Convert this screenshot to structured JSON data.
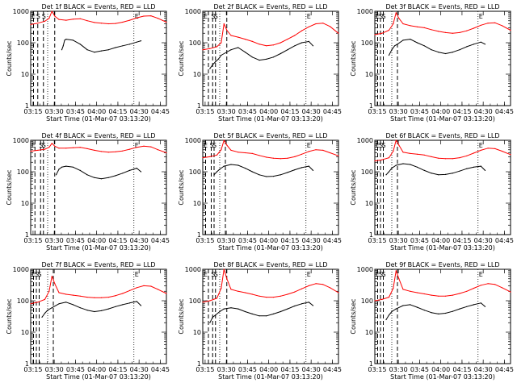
{
  "figure": {
    "xlabel": "Start Time (01-Mar-07 03:13:20)",
    "ylabel": "Counts/sec",
    "x_tick_labels": [
      "03:15",
      "03:30",
      "03:45",
      "04:00",
      "04:15",
      "04:30",
      "04:45"
    ],
    "y_tick_labels": [
      "1",
      "10",
      "100",
      "1000"
    ],
    "markers": {
      "E": "E",
      "S": "S"
    },
    "colors": {
      "events": "#000000",
      "lld": "#ff0000",
      "axes": "#000000"
    }
  },
  "chart_data": [
    {
      "type": "line",
      "title": "Det 1f BLACK = Events, RED = LLD",
      "x_range_min": [
        0,
        96
      ],
      "y_log_range": [
        1,
        1000
      ],
      "series": [
        {
          "color": "#000000",
          "x_min": [
            22,
            23,
            24,
            25,
            30,
            35,
            40,
            45,
            50,
            55,
            60,
            65,
            70,
            75,
            78
          ],
          "y": [
            60,
            80,
            120,
            130,
            120,
            90,
            60,
            50,
            55,
            60,
            70,
            80,
            90,
            105,
            115
          ]
        },
        {
          "color": "#ff0000",
          "x_min": [
            0,
            5,
            10,
            13,
            15,
            17,
            20,
            25,
            30,
            35,
            40,
            45,
            50,
            55,
            60,
            65,
            70,
            75,
            80,
            85,
            90,
            96
          ],
          "y": [
            380,
            420,
            480,
            600,
            1000,
            700,
            550,
            520,
            560,
            580,
            500,
            440,
            420,
            400,
            410,
            450,
            520,
            620,
            700,
            720,
            600,
            450
          ]
        }
      ],
      "events": {
        "dashed_x_min": [
          2,
          5,
          9,
          17
        ],
        "dotted_x_min": [
          12,
          73
        ]
      }
    },
    {
      "type": "line",
      "title": "Det 2f BLACK = Events, RED = LLD",
      "x_range_min": [
        0,
        96
      ],
      "y_log_range": [
        1,
        1000
      ],
      "series": [
        {
          "color": "#000000",
          "x_min": [
            5,
            7,
            9,
            11,
            13,
            20,
            25,
            30,
            35,
            40,
            45,
            50,
            55,
            60,
            65,
            70,
            75,
            78
          ],
          "y": [
            15,
            20,
            25,
            30,
            40,
            60,
            70,
            50,
            35,
            28,
            30,
            35,
            45,
            60,
            80,
            100,
            110,
            80
          ]
        },
        {
          "color": "#ff0000",
          "x_min": [
            0,
            5,
            10,
            13,
            15,
            17,
            20,
            25,
            30,
            35,
            40,
            45,
            50,
            55,
            60,
            65,
            70,
            75,
            80,
            85,
            90,
            96
          ],
          "y": [
            60,
            65,
            75,
            100,
            400,
            250,
            170,
            150,
            130,
            110,
            90,
            80,
            85,
            100,
            130,
            170,
            240,
            320,
            400,
            420,
            330,
            200
          ]
        }
      ],
      "events": {
        "dashed_x_min": [
          4,
          7,
          9,
          17
        ],
        "dotted_x_min": [
          12,
          73
        ]
      }
    },
    {
      "type": "line",
      "title": "Det 3f BLACK = Events, RED = LLD",
      "x_range_min": [
        0,
        96
      ],
      "y_log_range": [
        1,
        1000
      ],
      "series": [
        {
          "color": "#000000",
          "x_min": [
            10,
            12,
            14,
            16,
            20,
            25,
            30,
            35,
            40,
            45,
            50,
            55,
            60,
            65,
            70,
            75,
            78
          ],
          "y": [
            40,
            60,
            80,
            90,
            120,
            130,
            100,
            80,
            60,
            50,
            45,
            50,
            60,
            75,
            90,
            105,
            90
          ]
        },
        {
          "color": "#ff0000",
          "x_min": [
            0,
            5,
            10,
            13,
            15,
            17,
            20,
            25,
            30,
            35,
            40,
            45,
            50,
            55,
            60,
            65,
            70,
            75,
            80,
            85,
            90,
            96
          ],
          "y": [
            180,
            200,
            250,
            400,
            900,
            600,
            400,
            350,
            320,
            300,
            260,
            230,
            210,
            200,
            210,
            240,
            290,
            360,
            420,
            430,
            350,
            250
          ]
        }
      ],
      "events": {
        "dashed_x_min": [
          2,
          4,
          6,
          16
        ],
        "dotted_x_min": [
          12,
          73
        ]
      }
    },
    {
      "type": "line",
      "title": "Det 4f BLACK = Events, RED = LLD",
      "x_range_min": [
        0,
        96
      ],
      "y_log_range": [
        1,
        1000
      ],
      "series": [
        {
          "color": "#000000",
          "x_min": [
            18,
            20,
            22,
            25,
            30,
            35,
            40,
            45,
            50,
            55,
            60,
            65,
            70,
            75,
            78
          ],
          "y": [
            80,
            120,
            140,
            150,
            140,
            110,
            80,
            65,
            60,
            65,
            75,
            90,
            110,
            130,
            100
          ]
        },
        {
          "color": "#ff0000",
          "x_min": [
            0,
            5,
            10,
            13,
            15,
            17,
            20,
            25,
            30,
            35,
            40,
            45,
            50,
            55,
            60,
            65,
            70,
            75,
            80,
            85,
            90,
            96
          ],
          "y": [
            450,
            480,
            520,
            600,
            800,
            650,
            560,
            560,
            580,
            600,
            540,
            480,
            440,
            420,
            430,
            460,
            520,
            600,
            650,
            620,
            500,
            400
          ]
        }
      ],
      "events": {
        "dashed_x_min": [
          3,
          7,
          9,
          17
        ],
        "dotted_x_min": [
          12,
          73
        ]
      }
    },
    {
      "type": "line",
      "title": "Det 5f BLACK = Events, RED = LLD",
      "x_range_min": [
        0,
        96
      ],
      "y_log_range": [
        1,
        1000
      ],
      "series": [
        {
          "color": "#000000",
          "x_min": [
            8,
            10,
            12,
            15,
            20,
            25,
            30,
            35,
            40,
            45,
            50,
            55,
            60,
            65,
            70,
            75,
            78
          ],
          "y": [
            80,
            100,
            120,
            150,
            170,
            160,
            130,
            100,
            80,
            70,
            72,
            80,
            95,
            115,
            135,
            150,
            110
          ]
        },
        {
          "color": "#ff0000",
          "x_min": [
            0,
            5,
            10,
            13,
            15,
            17,
            20,
            25,
            30,
            35,
            40,
            45,
            50,
            55,
            60,
            65,
            70,
            75,
            80,
            85,
            90,
            96
          ],
          "y": [
            280,
            300,
            340,
            500,
            1000,
            700,
            480,
            420,
            400,
            380,
            330,
            290,
            270,
            260,
            270,
            300,
            360,
            440,
            500,
            480,
            400,
            320
          ]
        }
      ],
      "events": {
        "dashed_x_min": [
          2,
          6,
          8,
          16
        ],
        "dotted_x_min": [
          12,
          73
        ]
      }
    },
    {
      "type": "line",
      "title": "Det 6f BLACK = Events, RED = LLD",
      "x_range_min": [
        0,
        96
      ],
      "y_log_range": [
        1,
        1000
      ],
      "series": [
        {
          "color": "#000000",
          "x_min": [
            8,
            10,
            12,
            15,
            20,
            25,
            30,
            35,
            40,
            45,
            50,
            55,
            60,
            65,
            70,
            75,
            78
          ],
          "y": [
            80,
            100,
            130,
            160,
            180,
            170,
            140,
            110,
            90,
            80,
            82,
            90,
            105,
            125,
            140,
            150,
            110
          ]
        },
        {
          "color": "#ff0000",
          "x_min": [
            0,
            5,
            10,
            13,
            15,
            17,
            20,
            25,
            30,
            35,
            40,
            45,
            50,
            55,
            60,
            65,
            70,
            75,
            80,
            85,
            90,
            96
          ],
          "y": [
            220,
            240,
            280,
            450,
            1000,
            700,
            420,
            380,
            360,
            340,
            300,
            270,
            260,
            260,
            280,
            320,
            390,
            480,
            560,
            540,
            450,
            350
          ]
        }
      ],
      "events": {
        "dashed_x_min": [
          2,
          4,
          6,
          16
        ],
        "dotted_x_min": [
          12,
          73
        ]
      }
    },
    {
      "type": "line",
      "title": "Det 7f BLACK = Events, RED = LLD",
      "x_range_min": [
        0,
        96
      ],
      "y_log_range": [
        1,
        1000
      ],
      "series": [
        {
          "color": "#000000",
          "x_min": [
            8,
            10,
            12,
            15,
            20,
            25,
            30,
            35,
            40,
            45,
            50,
            55,
            60,
            65,
            70,
            75,
            78
          ],
          "y": [
            30,
            40,
            50,
            60,
            80,
            90,
            75,
            60,
            50,
            45,
            48,
            55,
            65,
            75,
            85,
            95,
            70
          ]
        },
        {
          "color": "#ff0000",
          "x_min": [
            0,
            5,
            10,
            13,
            15,
            17,
            20,
            25,
            30,
            35,
            40,
            45,
            50,
            55,
            60,
            65,
            70,
            75,
            80,
            85,
            90,
            96
          ],
          "y": [
            80,
            90,
            110,
            200,
            600,
            350,
            180,
            160,
            150,
            140,
            130,
            125,
            125,
            130,
            145,
            170,
            210,
            260,
            300,
            290,
            230,
            170
          ]
        }
      ],
      "events": {
        "dashed_x_min": [
          2,
          4,
          6,
          16
        ],
        "dotted_x_min": [
          12,
          73
        ]
      }
    },
    {
      "type": "line",
      "title": "Det 8f BLACK = Events, RED = LLD",
      "x_range_min": [
        0,
        96
      ],
      "y_log_range": [
        1,
        1000
      ],
      "series": [
        {
          "color": "#000000",
          "x_min": [
            5,
            7,
            9,
            12,
            15,
            20,
            25,
            30,
            35,
            40,
            45,
            50,
            55,
            60,
            65,
            70,
            75,
            78
          ],
          "y": [
            20,
            30,
            35,
            45,
            55,
            60,
            55,
            45,
            38,
            33,
            33,
            38,
            45,
            55,
            68,
            80,
            90,
            70
          ]
        },
        {
          "color": "#ff0000",
          "x_min": [
            0,
            5,
            10,
            13,
            15,
            17,
            20,
            25,
            30,
            35,
            40,
            45,
            50,
            55,
            60,
            65,
            70,
            75,
            80,
            85,
            90,
            96
          ],
          "y": [
            90,
            100,
            120,
            250,
            1000,
            500,
            230,
            200,
            180,
            160,
            140,
            130,
            130,
            140,
            160,
            190,
            240,
            300,
            350,
            330,
            260,
            180
          ]
        }
      ],
      "events": {
        "dashed_x_min": [
          4,
          7,
          9,
          17
        ],
        "dotted_x_min": [
          12,
          73
        ]
      }
    },
    {
      "type": "line",
      "title": "Det 9f BLACK = Events, RED = LLD",
      "x_range_min": [
        0,
        96
      ],
      "y_log_range": [
        1,
        1000
      ],
      "series": [
        {
          "color": "#000000",
          "x_min": [
            8,
            10,
            12,
            15,
            20,
            25,
            30,
            35,
            40,
            45,
            50,
            55,
            60,
            65,
            70,
            75,
            78
          ],
          "y": [
            25,
            35,
            45,
            55,
            70,
            75,
            62,
            50,
            42,
            38,
            40,
            46,
            55,
            65,
            75,
            85,
            65
          ]
        },
        {
          "color": "#ff0000",
          "x_min": [
            0,
            5,
            10,
            13,
            15,
            17,
            20,
            25,
            30,
            35,
            40,
            45,
            50,
            55,
            60,
            65,
            70,
            75,
            80,
            85,
            90,
            96
          ],
          "y": [
            100,
            110,
            130,
            250,
            900,
            500,
            230,
            200,
            180,
            165,
            150,
            140,
            140,
            150,
            170,
            200,
            250,
            310,
            350,
            330,
            260,
            190
          ]
        }
      ],
      "events": {
        "dashed_x_min": [
          2,
          4,
          6,
          16
        ],
        "dotted_x_min": [
          12,
          73
        ]
      }
    }
  ]
}
